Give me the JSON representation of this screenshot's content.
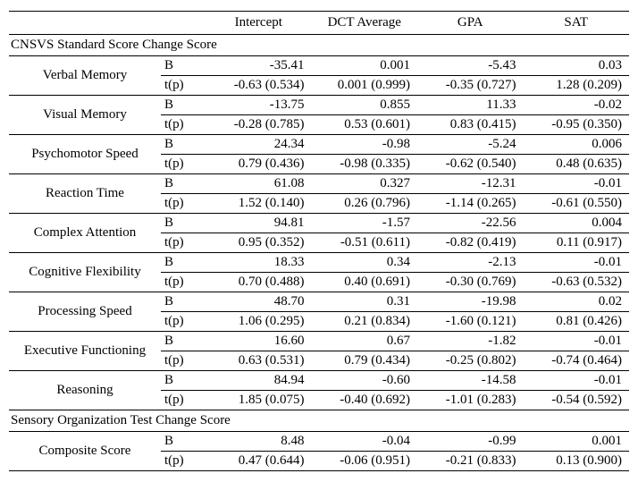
{
  "columns": [
    "Intercept",
    "DCT Average",
    "GPA",
    "SAT"
  ],
  "stats": [
    "B",
    "t(p)"
  ],
  "sections": [
    {
      "title": "CNSVS Standard Score Change Score",
      "rows": [
        {
          "name": "Verbal Memory",
          "B": [
            "-35.41",
            "0.001",
            "-5.43",
            "0.03"
          ],
          "tp": [
            "-0.63 (0.534)",
            "0.001 (0.999)",
            "-0.35 (0.727)",
            "1.28 (0.209)"
          ]
        },
        {
          "name": "Visual Memory",
          "B": [
            "-13.75",
            "0.855",
            "11.33",
            "-0.02"
          ],
          "tp": [
            "-0.28 (0.785)",
            "0.53 (0.601)",
            "0.83 (0.415)",
            "-0.95 (0.350)"
          ]
        },
        {
          "name": "Psychomotor Speed",
          "B": [
            "24.34",
            "-0.98",
            "-5.24",
            "0.006"
          ],
          "tp": [
            "0.79 (0.436)",
            "-0.98 (0.335)",
            "-0.62 (0.540)",
            "0.48 (0.635)"
          ]
        },
        {
          "name": "Reaction Time",
          "B": [
            "61.08",
            "0.327",
            "-12.31",
            "-0.01"
          ],
          "tp": [
            "1.52 (0.140)",
            "0.26 (0.796)",
            "-1.14 (0.265)",
            "-0.61 (0.550)"
          ]
        },
        {
          "name": "Complex Attention",
          "B": [
            "94.81",
            "-1.57",
            "-22.56",
            "0.004"
          ],
          "tp": [
            "0.95 (0.352)",
            "-0.51 (0.611)",
            "-0.82 (0.419)",
            "0.11 (0.917)"
          ]
        },
        {
          "name": "Cognitive Flexibility",
          "B": [
            "18.33",
            "0.34",
            "-2.13",
            "-0.01"
          ],
          "tp": [
            "0.70 (0.488)",
            "0.40 (0.691)",
            "-0.30 (0.769)",
            "-0.63 (0.532)"
          ]
        },
        {
          "name": "Processing Speed",
          "B": [
            "48.70",
            "0.31",
            "-19.98",
            "0.02"
          ],
          "tp": [
            "1.06 (0.295)",
            "0.21 (0.834)",
            "-1.60 (0.121)",
            "0.81 (0.426)"
          ]
        },
        {
          "name": "Executive Functioning",
          "B": [
            "16.60",
            "0.67",
            "-1.82",
            "-0.01"
          ],
          "tp": [
            "0.63 (0.531)",
            "0.79 (0.434)",
            "-0.25 (0.802)",
            "-0.74 (0.464)"
          ]
        },
        {
          "name": "Reasoning",
          "B": [
            "84.94",
            "-0.60",
            "-14.58",
            "-0.01"
          ],
          "tp": [
            "1.85 (0.075)",
            "-0.40 (0.692)",
            "-1.01 (0.283)",
            "-0.54 (0.592)"
          ]
        }
      ]
    },
    {
      "title": "Sensory Organization Test Change Score",
      "rows": [
        {
          "name": "Composite Score",
          "B": [
            "8.48",
            "-0.04",
            "-0.99",
            "0.001"
          ],
          "tp": [
            "0.47 (0.644)",
            "-0.06 (0.951)",
            "-0.21 (0.833)",
            "0.13 (0.900)"
          ]
        }
      ]
    }
  ]
}
